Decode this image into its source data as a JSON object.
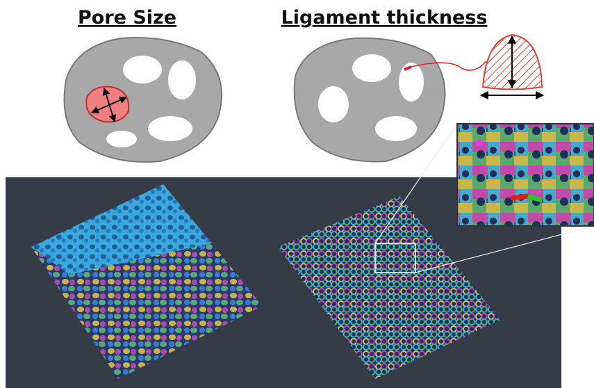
{
  "labels": {
    "pore_size": "Pore Size",
    "ligament_thickness": "Ligament thickness"
  }
}
